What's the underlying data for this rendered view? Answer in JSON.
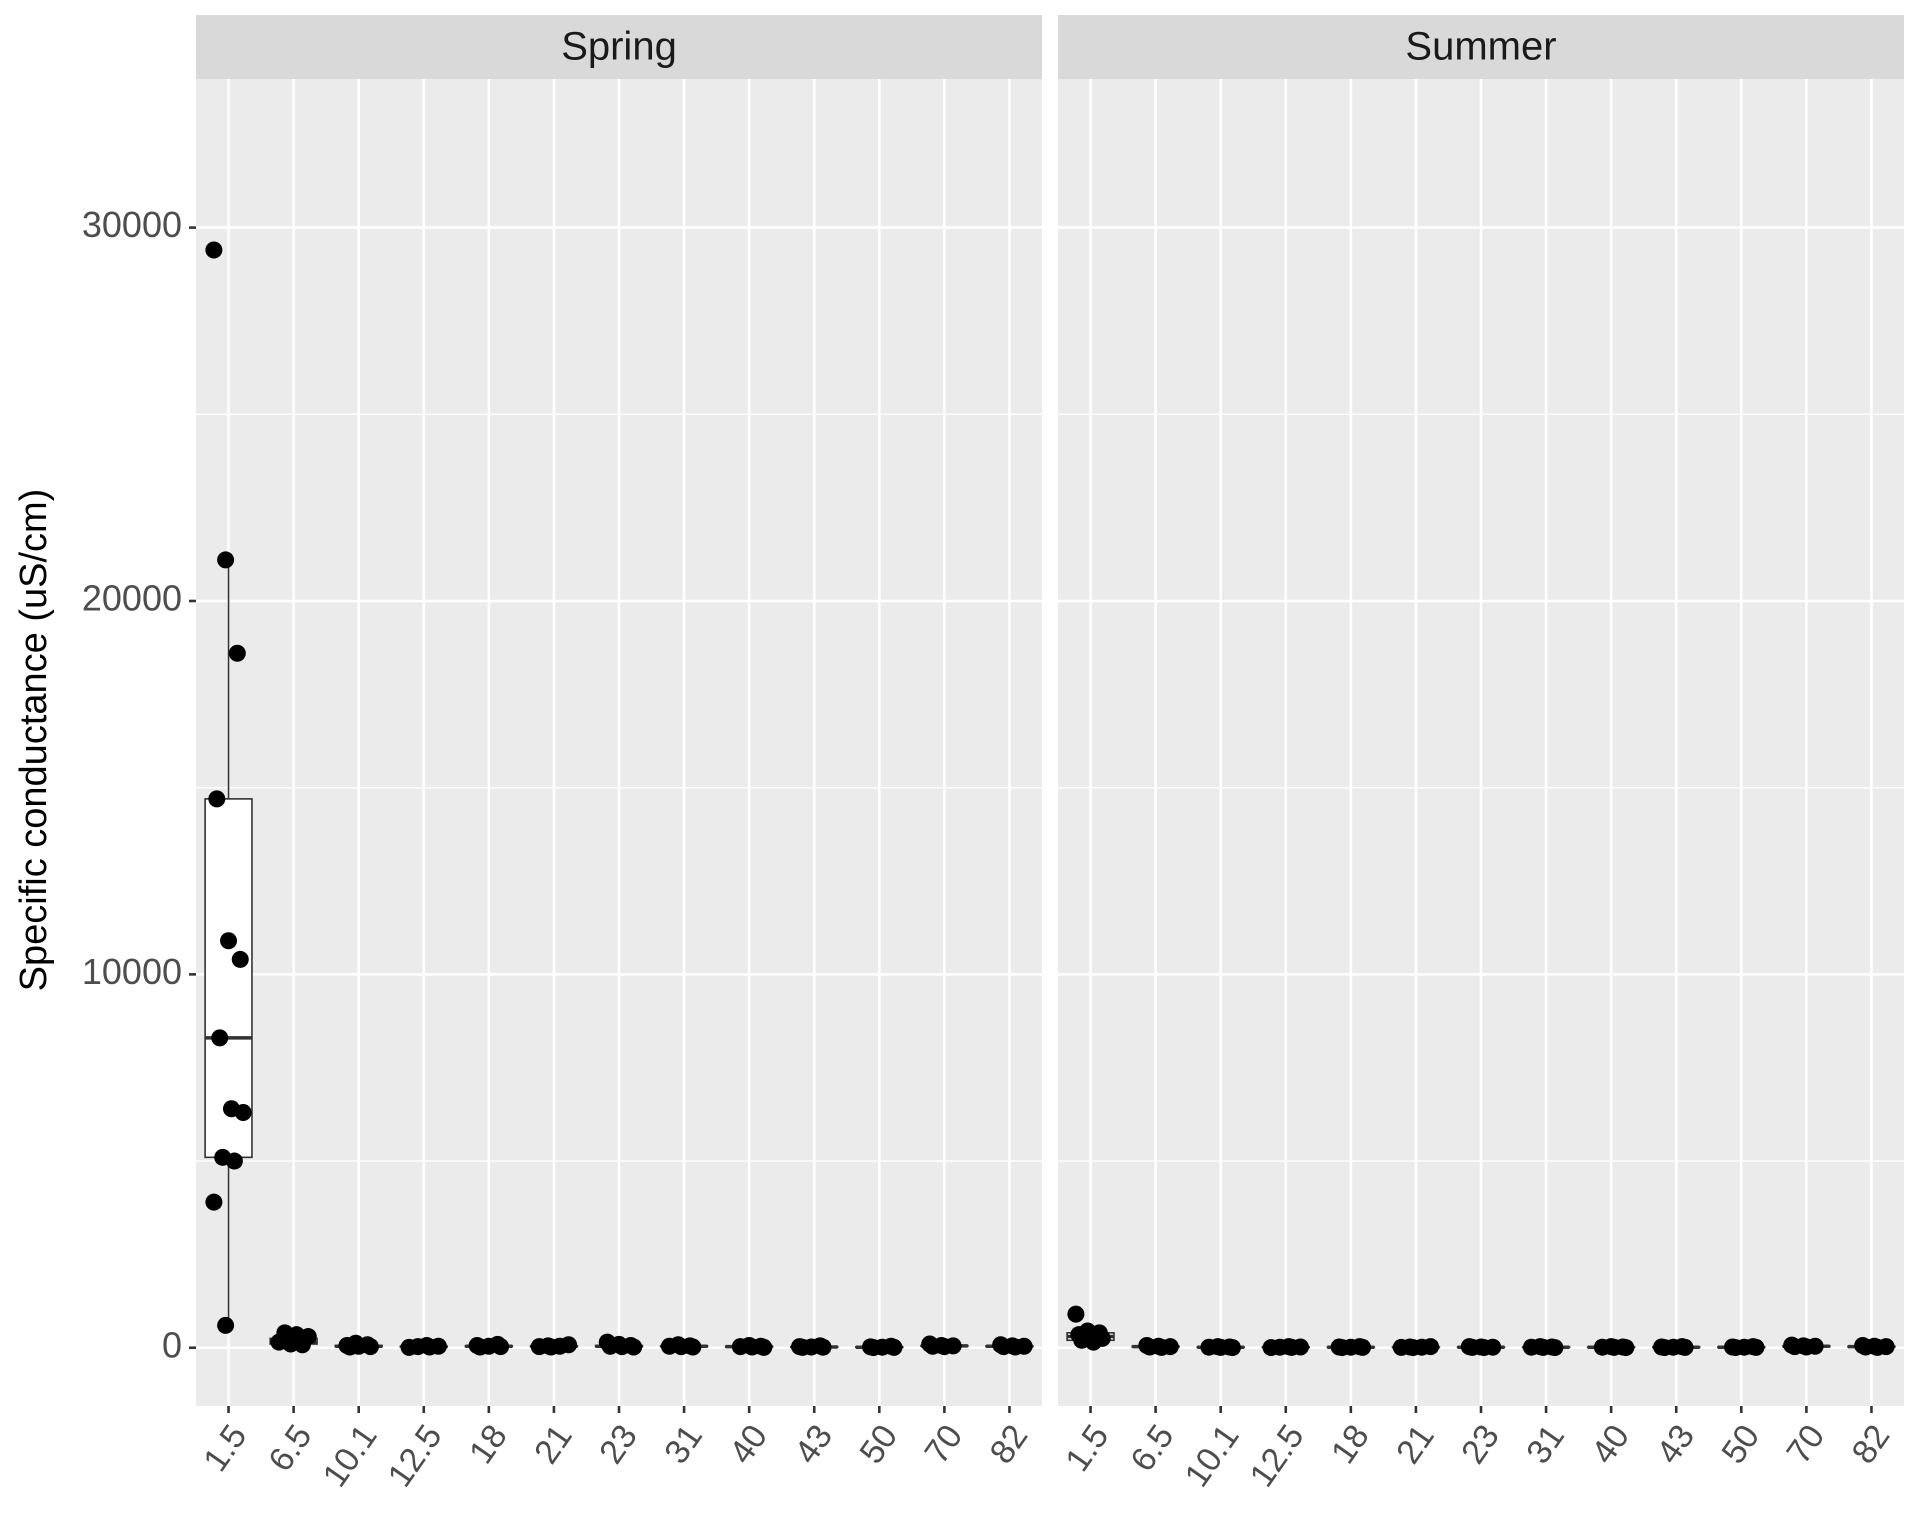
{
  "chart_data": [
    {
      "type": "box",
      "title": "Spring",
      "y_label": "Specific conductance (uS/cm)",
      "categories": [
        "1.5",
        "6.5",
        "10.1",
        "12.5",
        "18",
        "21",
        "23",
        "31",
        "40",
        "43",
        "50",
        "70",
        "82"
      ],
      "low": [
        600,
        50,
        20,
        10,
        20,
        20,
        20,
        20,
        10,
        10,
        5,
        30,
        20
      ],
      "q1": [
        5100,
        100,
        30,
        20,
        30,
        30,
        30,
        30,
        20,
        15,
        10,
        40,
        30
      ],
      "median": [
        8300,
        150,
        40,
        30,
        40,
        40,
        40,
        40,
        30,
        20,
        15,
        50,
        40
      ],
      "q3": [
        14700,
        250,
        60,
        40,
        50,
        50,
        60,
        50,
        40,
        30,
        25,
        60,
        50
      ],
      "high": [
        21100,
        400,
        120,
        60,
        90,
        80,
        150,
        80,
        60,
        50,
        40,
        100,
        80
      ],
      "points": [
        [
          29400,
          21100,
          18600,
          14700,
          10900,
          10400,
          8300,
          6400,
          6300,
          5100,
          5000,
          3900,
          600
        ],
        [
          400,
          350,
          300,
          250,
          200,
          150,
          100,
          80
        ],
        [
          120,
          80,
          60,
          40,
          30,
          20
        ],
        [
          60,
          40,
          30,
          20,
          10
        ],
        [
          90,
          60,
          40,
          30,
          20
        ],
        [
          80,
          50,
          40,
          30,
          20
        ],
        [
          150,
          90,
          60,
          40,
          30,
          20
        ],
        [
          80,
          50,
          40,
          30,
          20
        ],
        [
          60,
          40,
          30,
          20,
          10
        ],
        [
          50,
          30,
          20,
          15,
          10
        ],
        [
          40,
          25,
          15,
          10,
          5
        ],
        [
          100,
          60,
          50,
          40,
          30
        ],
        [
          80,
          50,
          40,
          30,
          20
        ]
      ],
      "color": "#000000",
      "ylim": [
        -1560,
        33980
      ],
      "yticks": [
        0,
        10000,
        20000,
        30000
      ],
      "yminor": [
        5000,
        15000,
        25000
      ],
      "grid": true
    },
    {
      "type": "box",
      "title": "Summer",
      "categories": [
        "1.5",
        "6.5",
        "10.1",
        "12.5",
        "18",
        "21",
        "23",
        "31",
        "40",
        "43",
        "50",
        "70",
        "82"
      ],
      "low": [
        100,
        10,
        5,
        5,
        5,
        5,
        5,
        5,
        5,
        5,
        5,
        20,
        10
      ],
      "q1": [
        200,
        20,
        10,
        10,
        10,
        10,
        10,
        10,
        10,
        10,
        10,
        30,
        20
      ],
      "median": [
        300,
        30,
        15,
        15,
        15,
        15,
        15,
        15,
        15,
        15,
        15,
        40,
        30
      ],
      "q3": [
        400,
        40,
        20,
        20,
        20,
        20,
        20,
        20,
        20,
        20,
        20,
        50,
        40
      ],
      "high": [
        550,
        60,
        30,
        30,
        30,
        30,
        30,
        30,
        30,
        30,
        30,
        70,
        60
      ],
      "points": [
        [
          900,
          450,
          400,
          350,
          300,
          250,
          200,
          150
        ],
        [
          60,
          40,
          30,
          20,
          10
        ],
        [
          30,
          20,
          15,
          10,
          5
        ],
        [
          30,
          20,
          15,
          10,
          5
        ],
        [
          30,
          20,
          15,
          10,
          5
        ],
        [
          30,
          20,
          15,
          10,
          5
        ],
        [
          30,
          20,
          15,
          10,
          5
        ],
        [
          30,
          20,
          15,
          10,
          5
        ],
        [
          30,
          20,
          15,
          10,
          5
        ],
        [
          30,
          20,
          15,
          10,
          5
        ],
        [
          30,
          20,
          15,
          10,
          5
        ],
        [
          70,
          50,
          40,
          30,
          20
        ],
        [
          60,
          40,
          30,
          20,
          10
        ]
      ],
      "color": "#000000",
      "ylim": [
        -1560,
        33980
      ],
      "yticks": [
        0,
        10000,
        20000,
        30000
      ],
      "yminor": [
        5000,
        15000,
        25000
      ],
      "grid": true
    }
  ]
}
